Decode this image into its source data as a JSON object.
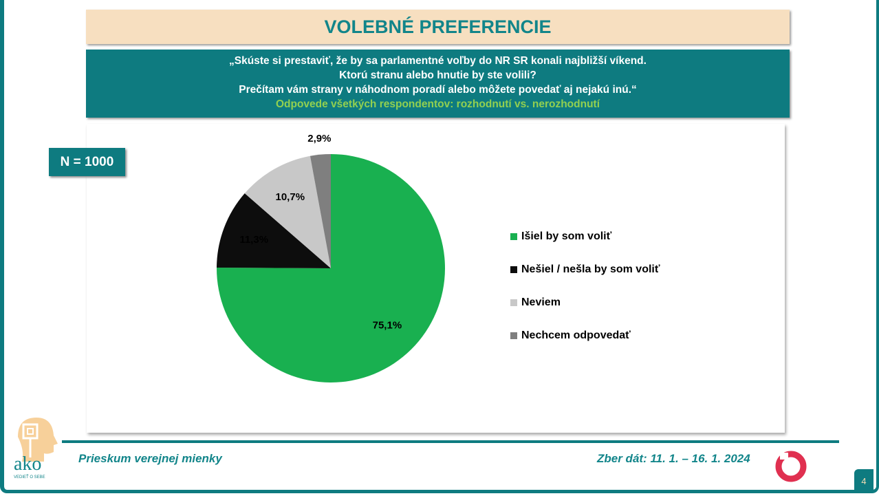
{
  "title": "VOLEBNÉ PREFERENCIE",
  "question": {
    "line1": "„Skúste si prestaviť, že by sa parlamentné voľby do NR SR konali najbližší víkend.",
    "line2": "Ktorú stranu alebo hnutie by ste volili?",
    "line3": "Prečítam vám strany v náhodnom poradí alebo môžete povedať aj nejakú inú.“",
    "subtitle": "Odpovede všetkých respondentov: rozhodnutí vs. nerozhodnutí"
  },
  "sample": "N = 1000",
  "chart_data": {
    "type": "pie",
    "title": "",
    "slices": [
      {
        "label": "Išiel by som voliť",
        "value": 75.1,
        "display": "75,1%",
        "color": "#19b050"
      },
      {
        "label": "Nešiel / nešla by som voliť",
        "value": 11.3,
        "display": "11,3%",
        "color": "#0d0d0d"
      },
      {
        "label": "Neviem",
        "value": 10.7,
        "display": "10,7%",
        "color": "#c8c8c8"
      },
      {
        "label": "Nechcem odpovedať",
        "value": 2.9,
        "display": "2,9%",
        "color": "#7f7f7f"
      }
    ],
    "legend": "right"
  },
  "footer": {
    "left": "Prieskum verejnej mienky",
    "right": "Zber dát: 11. 1. – 16. 1. 2024",
    "page": "4"
  },
  "logo": {
    "text": "ako",
    "tagline": "VEDIEŤ O SEBE"
  }
}
